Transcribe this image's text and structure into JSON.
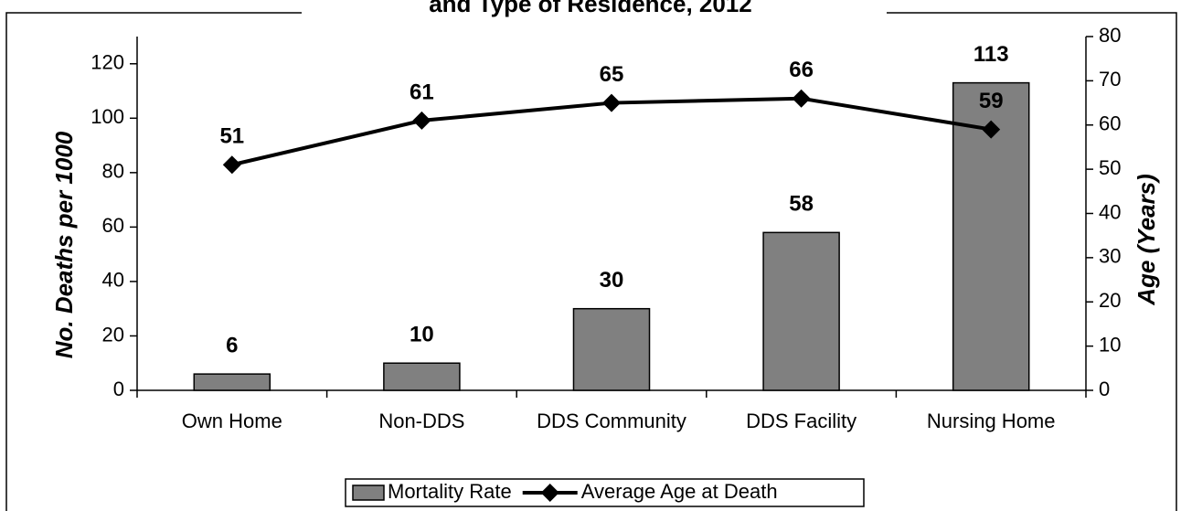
{
  "chart_data": {
    "type": "bar-line",
    "title": "and Type of Residence, 2012",
    "y_label": "No. Deaths per 1000",
    "y2_label": "Age (Years)",
    "categories": [
      "Own Home",
      "Non-DDS",
      "DDS Community",
      "DDS Facility",
      "Nursing Home"
    ],
    "series": [
      {
        "name": "Mortality Rate",
        "type": "bar",
        "color": "#808080",
        "values": [
          6,
          10,
          30,
          58,
          113
        ]
      },
      {
        "name": "Average Age at Death",
        "type": "line",
        "color": "#000000",
        "axis": "y2",
        "values": [
          51,
          61,
          65,
          66,
          59
        ]
      }
    ],
    "ylim": [
      0,
      130
    ],
    "yticks": [
      0,
      20,
      40,
      60,
      80,
      100,
      120
    ],
    "y2lim": [
      0,
      80
    ],
    "y2ticks": [
      0,
      10,
      20,
      30,
      40,
      50,
      60,
      70,
      80
    ],
    "legend": "bottom"
  }
}
